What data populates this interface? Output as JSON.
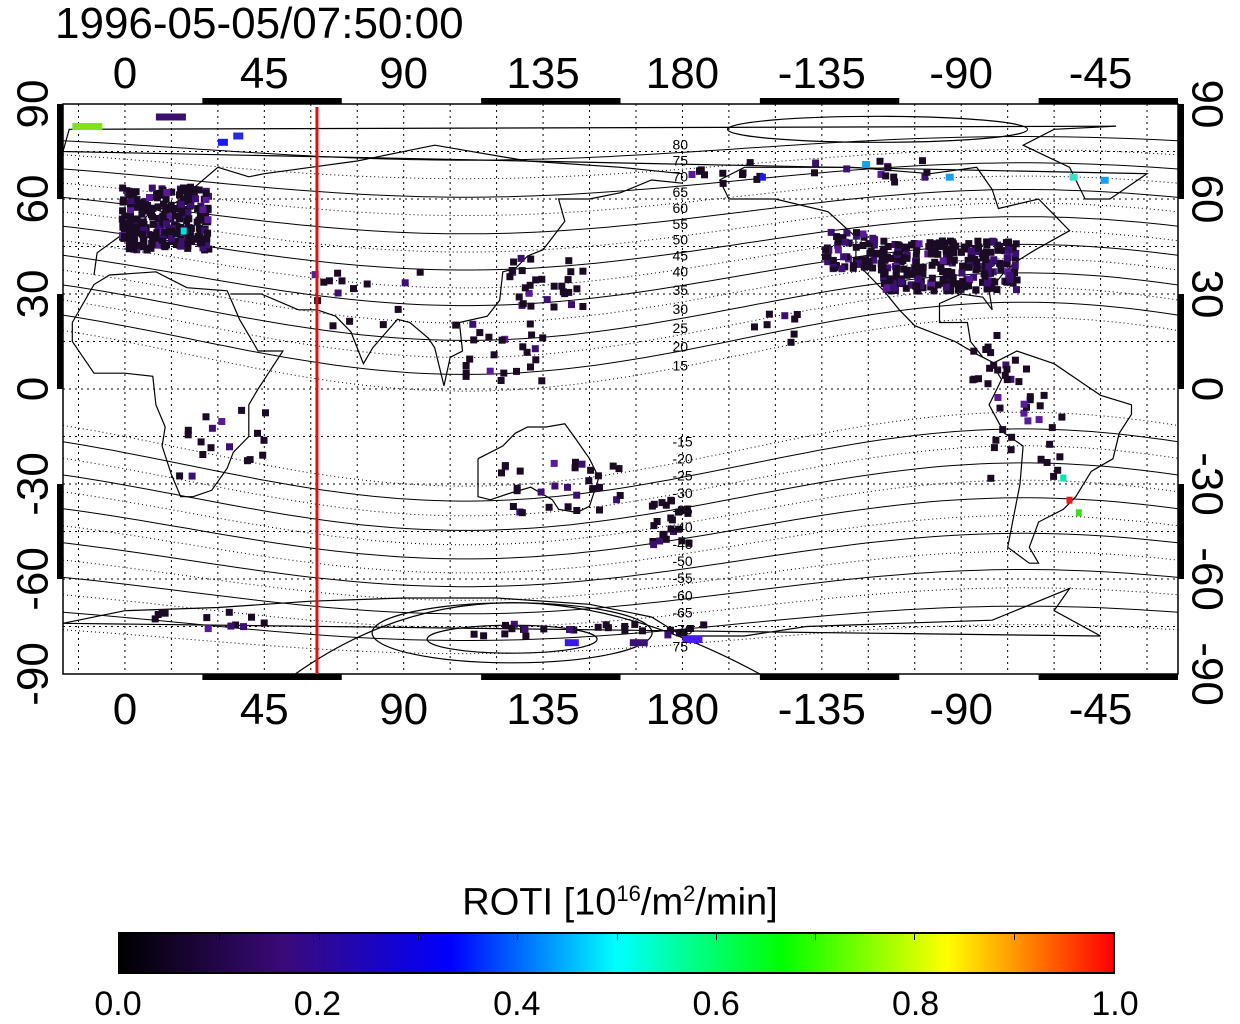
{
  "title": "1996-05-05/07:50:00",
  "map": {
    "top_lon_labels": [
      "0",
      "45",
      "90",
      "135",
      "180",
      "-135",
      "-90",
      "-45"
    ],
    "bottom_lon_labels": [
      "0",
      "45",
      "90",
      "135",
      "180",
      "-135",
      "-90",
      "-45"
    ],
    "left_lat_labels": [
      "90",
      "60",
      "30",
      "0",
      "-30",
      "-60",
      "-90"
    ],
    "right_lat_labels": [
      "90",
      "60",
      "30",
      "0",
      "-30",
      "-60",
      "-90"
    ],
    "contour_labels_north": [
      "80",
      "75",
      "70",
      "65",
      "60",
      "55",
      "50",
      "45",
      "40",
      "35",
      "30",
      "25",
      "20",
      "15"
    ],
    "contour_labels_south": [
      "-15",
      "-20",
      "-25",
      "-30",
      "-35",
      "-40",
      "-45",
      "-50",
      "-55",
      "-60",
      "-65",
      "-70",
      "75"
    ],
    "terminator_color": "#dd1111",
    "terminator_longitude": 62
  },
  "colorbar": {
    "title_main": "ROTI  [10",
    "title_sup1": "16",
    "title_mid": "/m",
    "title_sup2": "2",
    "title_end": "/min]",
    "tick_labels": [
      "0.0",
      "0.2",
      "0.4",
      "0.6",
      "0.8",
      "1.0"
    ],
    "range": [
      0.0,
      1.0
    ],
    "colors": [
      "#000000",
      "#3a0a7a",
      "#0000ff",
      "#00ffff",
      "#00ff00",
      "#ffff00",
      "#ff0000"
    ]
  }
}
